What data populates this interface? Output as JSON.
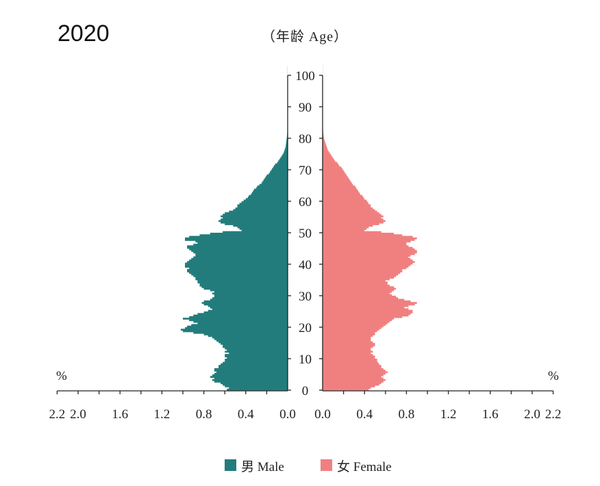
{
  "chart_data": {
    "type": "bar",
    "title": "2020",
    "y_axis_title": "（年龄 Age）",
    "unit_label": "%",
    "y_range": [
      0,
      100
    ],
    "y_ticks": [
      "0",
      "10",
      "20",
      "30",
      "40",
      "50",
      "60",
      "70",
      "80",
      "90",
      "100"
    ],
    "x_range": [
      0,
      2.2
    ],
    "x_ticks_left": [
      "2.2",
      "2.0",
      "1.6",
      "1.2",
      "0.8",
      "0.4",
      "0.0"
    ],
    "x_ticks_right": [
      "0.0",
      "0.4",
      "0.8",
      "1.2",
      "1.6",
      "2.0",
      "2.2"
    ],
    "legend": "bottom-center",
    "colors": {
      "male": "#237c7c",
      "female": "#f08080"
    },
    "series": [
      {
        "name": "男 Male",
        "side": "left",
        "age_step": 0.5,
        "values": [
          0.58,
          0.56,
          0.6,
          0.62,
          0.64,
          0.7,
          0.72,
          0.7,
          0.74,
          0.72,
          0.7,
          0.68,
          0.7,
          0.7,
          0.66,
          0.66,
          0.64,
          0.62,
          0.6,
          0.6,
          0.58,
          0.6,
          0.6,
          0.56,
          0.6,
          0.58,
          0.6,
          0.62,
          0.62,
          0.64,
          0.66,
          0.68,
          0.7,
          0.72,
          0.76,
          0.8,
          0.9,
          1.0,
          1.02,
          0.98,
          0.96,
          0.92,
          0.86,
          0.9,
          0.94,
          1.0,
          0.94,
          0.9,
          0.86,
          0.8,
          0.76,
          0.72,
          0.74,
          0.76,
          0.8,
          0.82,
          0.8,
          0.74,
          0.72,
          0.7,
          0.7,
          0.72,
          0.7,
          0.74,
          0.8,
          0.82,
          0.84,
          0.84,
          0.86,
          0.86,
          0.88,
          0.88,
          0.9,
          0.92,
          0.94,
          0.96,
          0.96,
          0.94,
          0.98,
          0.98,
          0.98,
          0.96,
          0.94,
          0.92,
          0.9,
          0.88,
          0.88,
          0.9,
          0.92,
          0.94,
          0.96,
          0.96,
          0.9,
          0.86,
          0.88,
          0.98,
          0.98,
          0.94,
          0.84,
          0.74,
          0.62,
          0.44,
          0.46,
          0.48,
          0.52,
          0.6,
          0.64,
          0.66,
          0.64,
          0.62,
          0.64,
          0.62,
          0.6,
          0.56,
          0.52,
          0.5,
          0.48,
          0.48,
          0.46,
          0.44,
          0.42,
          0.4,
          0.38,
          0.37,
          0.35,
          0.34,
          0.33,
          0.32,
          0.3,
          0.29,
          0.27,
          0.25,
          0.24,
          0.23,
          0.22,
          0.21,
          0.2,
          0.18,
          0.17,
          0.16,
          0.15,
          0.14,
          0.13,
          0.12,
          0.1,
          0.09,
          0.08,
          0.07,
          0.06,
          0.05,
          0.04,
          0.035,
          0.03,
          0.025,
          0.02,
          0.018,
          0.016,
          0.014,
          0.012,
          0.01,
          0.008,
          0.006,
          0.005,
          0.004,
          0.003,
          0.002,
          0.002,
          0.001,
          0.001,
          0.001,
          0.001,
          0.001,
          0.001,
          0.001,
          0.001,
          0.001,
          0.001,
          0.001,
          0.001,
          0.001,
          0.001,
          0.001,
          0.001,
          0.001,
          0.001,
          0.001,
          0.001,
          0.001,
          0.001,
          0.001,
          0.001,
          0.001,
          0.001,
          0.001,
          0.001,
          0.001,
          0.001,
          0.001,
          0.001,
          0.001,
          0.001,
          0.001,
          0.001,
          0.001,
          0.001,
          0.001
        ]
      },
      {
        "name": "女 Female",
        "side": "right",
        "age_step": 0.5,
        "values": [
          0.44,
          0.46,
          0.5,
          0.54,
          0.56,
          0.58,
          0.6,
          0.58,
          0.56,
          0.58,
          0.6,
          0.62,
          0.6,
          0.58,
          0.56,
          0.56,
          0.54,
          0.53,
          0.52,
          0.52,
          0.5,
          0.5,
          0.48,
          0.46,
          0.48,
          0.46,
          0.46,
          0.48,
          0.5,
          0.5,
          0.48,
          0.46,
          0.46,
          0.46,
          0.48,
          0.5,
          0.5,
          0.52,
          0.54,
          0.56,
          0.58,
          0.6,
          0.62,
          0.64,
          0.66,
          0.68,
          0.76,
          0.82,
          0.84,
          0.86,
          0.86,
          0.82,
          0.78,
          0.82,
          0.88,
          0.9,
          0.84,
          0.78,
          0.72,
          0.7,
          0.66,
          0.64,
          0.66,
          0.68,
          0.7,
          0.68,
          0.64,
          0.62,
          0.62,
          0.6,
          0.64,
          0.68,
          0.7,
          0.72,
          0.74,
          0.76,
          0.76,
          0.8,
          0.82,
          0.84,
          0.86,
          0.88,
          0.86,
          0.84,
          0.82,
          0.84,
          0.88,
          0.9,
          0.9,
          0.88,
          0.86,
          0.82,
          0.8,
          0.8,
          0.84,
          0.88,
          0.9,
          0.86,
          0.76,
          0.68,
          0.56,
          0.4,
          0.42,
          0.44,
          0.48,
          0.54,
          0.58,
          0.6,
          0.58,
          0.56,
          0.58,
          0.56,
          0.54,
          0.52,
          0.5,
          0.48,
          0.46,
          0.46,
          0.44,
          0.43,
          0.42,
          0.4,
          0.39,
          0.38,
          0.36,
          0.35,
          0.34,
          0.33,
          0.32,
          0.31,
          0.29,
          0.28,
          0.27,
          0.26,
          0.25,
          0.24,
          0.23,
          0.22,
          0.21,
          0.2,
          0.19,
          0.18,
          0.16,
          0.15,
          0.14,
          0.12,
          0.11,
          0.1,
          0.09,
          0.08,
          0.07,
          0.06,
          0.05,
          0.045,
          0.04,
          0.035,
          0.03,
          0.025,
          0.02,
          0.015,
          0.012,
          0.01,
          0.008,
          0.006,
          0.005,
          0.004,
          0.003,
          0.002,
          0.002,
          0.001,
          0.001,
          0.001,
          0.001,
          0.001,
          0.001,
          0.001,
          0.001,
          0.001,
          0.001,
          0.001,
          0.001,
          0.001,
          0.001,
          0.001,
          0.001,
          0.001,
          0.001,
          0.001,
          0.001,
          0.001,
          0.001,
          0.001,
          0.001,
          0.001,
          0.001,
          0.001,
          0.001,
          0.001,
          0.001,
          0.001,
          0.001,
          0.001,
          0.001,
          0.001,
          0.001,
          0.001,
          0.001
        ]
      }
    ]
  }
}
